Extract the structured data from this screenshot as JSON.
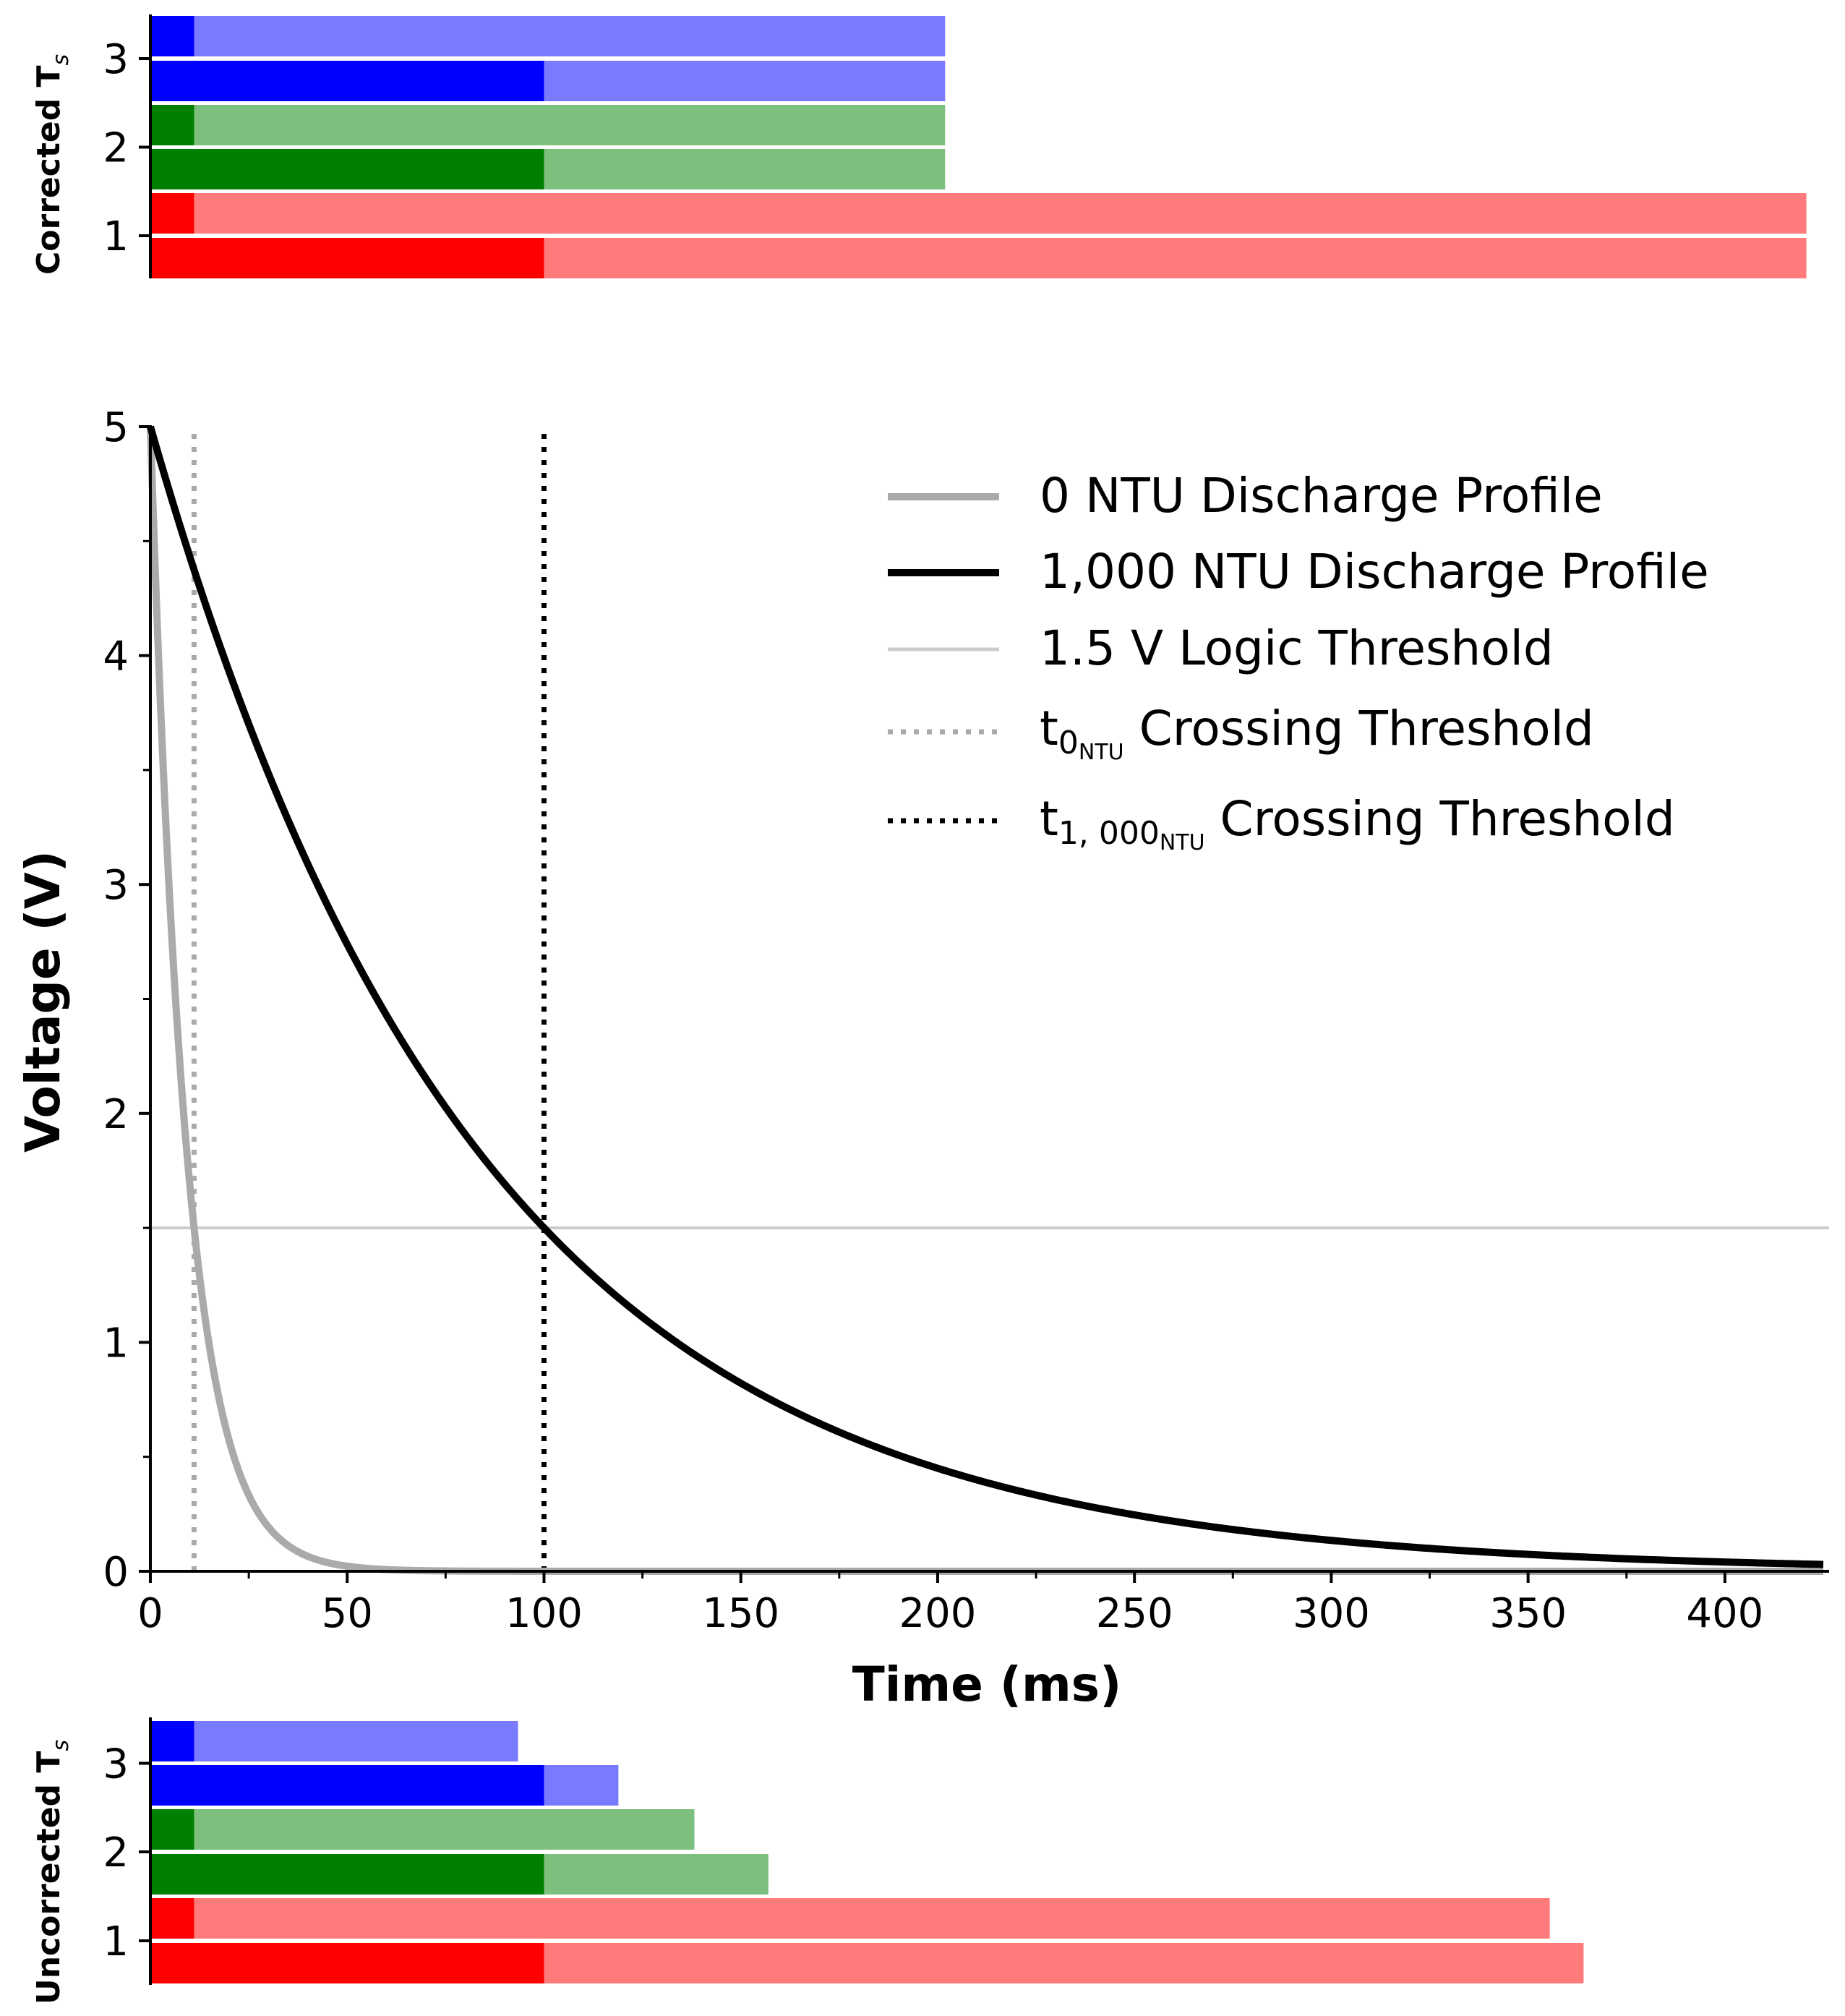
{
  "chart_data": [
    {
      "type": "bar",
      "orientation": "horizontal",
      "panel": "corrected",
      "ylabel": "Corrected T",
      "ylabel_sub": "s",
      "yticks": [
        "1",
        "2",
        "3"
      ],
      "xlim": [
        0,
        425
      ],
      "colors": {
        "1": {
          "dark": "#ff0000",
          "light": "#ff7a7a"
        },
        "2": {
          "dark": "#008000",
          "light": "#7dbf7d"
        },
        "3": {
          "dark": "#0000ff",
          "light": "#7a7aff"
        }
      },
      "bars": [
        {
          "group": 1,
          "variant": "1,000 NTU",
          "inner_end": 100,
          "total_end": 420.7
        },
        {
          "group": 1,
          "variant": "0 NTU",
          "inner_end": 11.1,
          "total_end": 420.7
        },
        {
          "group": 2,
          "variant": "1,000 NTU",
          "inner_end": 100,
          "total_end": 201.9
        },
        {
          "group": 2,
          "variant": "0 NTU",
          "inner_end": 11.1,
          "total_end": 201.9
        },
        {
          "group": 3,
          "variant": "1,000 NTU",
          "inner_end": 100,
          "total_end": 201.9
        },
        {
          "group": 3,
          "variant": "0 NTU",
          "inner_end": 11.1,
          "total_end": 201.9
        }
      ]
    },
    {
      "type": "line",
      "panel": "discharge",
      "xlabel": "Time (ms)",
      "ylabel": "Voltage (V)",
      "xlim": [
        0,
        425
      ],
      "ylim": [
        0,
        5
      ],
      "xticks": [
        0,
        50,
        100,
        150,
        200,
        250,
        300,
        350,
        400
      ],
      "yticks": [
        0,
        1,
        2,
        3,
        4,
        5
      ],
      "series": [
        {
          "name": "0 NTU Discharge Profile",
          "v0": 5,
          "tau_ms": 9.22,
          "color": "#aaaaaa"
        },
        {
          "name": "1,000 NTU Discharge Profile",
          "v0": 5,
          "tau_ms": 83.06,
          "color": "#000000"
        }
      ],
      "threshold": {
        "name": "1.5 V Logic Threshold",
        "value": 1.5,
        "color": "#cccccc"
      },
      "crossings": [
        {
          "base": "t",
          "sub": "0",
          "subsub": "NTU",
          "suffix": " Crossing Threshold",
          "x": 11.1,
          "color": "#aaaaaa"
        },
        {
          "base": "t",
          "sub": "1, 000",
          "subsub": "NTU",
          "suffix": " Crossing Threshold",
          "x": 100,
          "color": "#000000"
        }
      ],
      "legend_position": "upper right"
    },
    {
      "type": "bar",
      "orientation": "horizontal",
      "panel": "uncorrected",
      "ylabel": "Uncorrected T",
      "ylabel_sub": "s",
      "yticks": [
        "1",
        "2",
        "3"
      ],
      "xlim": [
        0,
        425
      ],
      "colors": {
        "1": {
          "dark": "#ff0000",
          "light": "#ff7a7a"
        },
        "2": {
          "dark": "#008000",
          "light": "#7dbf7d"
        },
        "3": {
          "dark": "#0000ff",
          "light": "#7a7aff"
        }
      },
      "bars": [
        {
          "group": 1,
          "variant": "1,000 NTU",
          "inner_end": 100,
          "total_end": 364.1
        },
        {
          "group": 1,
          "variant": "0 NTU",
          "inner_end": 11.1,
          "total_end": 355.5
        },
        {
          "group": 2,
          "variant": "1,000 NTU",
          "inner_end": 100,
          "total_end": 157.0
        },
        {
          "group": 2,
          "variant": "0 NTU",
          "inner_end": 11.1,
          "total_end": 138.2
        },
        {
          "group": 3,
          "variant": "1,000 NTU",
          "inner_end": 100,
          "total_end": 118.9
        },
        {
          "group": 3,
          "variant": "0 NTU",
          "inner_end": 11.1,
          "total_end": 93.4
        }
      ]
    }
  ]
}
